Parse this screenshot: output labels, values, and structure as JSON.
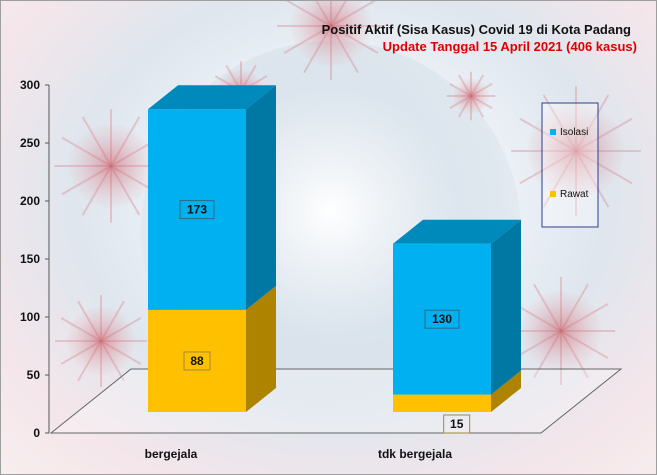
{
  "chart_data": {
    "type": "bar",
    "stacked": true,
    "three_d": true,
    "title": "Positif Aktif  (Sisa Kasus) Covid 19 di Kota Padang",
    "subtitle": "Update Tanggal 15 April 2021  (406  kasus)",
    "categories": [
      "bergejala",
      "tdk bergejala"
    ],
    "series": [
      {
        "name": "Rawat",
        "values": [
          88,
          15
        ],
        "color": "#ffc000"
      },
      {
        "name": "Isolasi",
        "values": [
          173,
          130
        ],
        "color": "#00b0f0"
      }
    ],
    "ylim": [
      0,
      300
    ],
    "yticks": [
      "0",
      "50",
      "100",
      "150",
      "200",
      "250",
      "300"
    ],
    "legend_position": "right",
    "legend_order": [
      "Isolasi",
      "Rawat"
    ],
    "title_color": "#111111",
    "subtitle_color": "#e00000"
  }
}
